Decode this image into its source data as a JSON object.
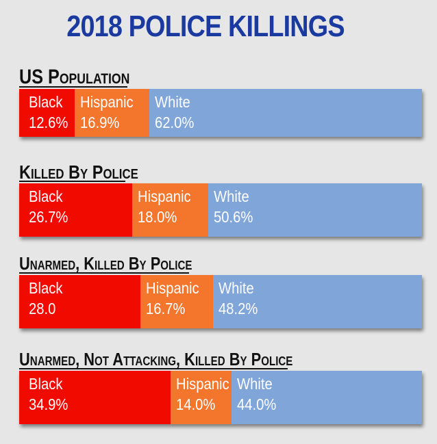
{
  "chart_data": {
    "type": "bar",
    "orientation": "horizontal-stacked",
    "title": "2018 POLICE KILLINGS",
    "colors": {
      "Black": "#f00a00",
      "Hispanic": "#f4752c",
      "White": "#7fa5d9"
    },
    "panels": [
      {
        "title": "US Population",
        "segments": [
          {
            "label": "Black",
            "value": 12.6,
            "value_label": "12.6%"
          },
          {
            "label": "Hispanic",
            "value": 16.9,
            "value_label": "16.9%"
          },
          {
            "label": "White",
            "value": 62.0,
            "value_label": "62.0%"
          }
        ]
      },
      {
        "title": "Killed By Police",
        "segments": [
          {
            "label": "Black",
            "value": 26.7,
            "value_label": "26.7%"
          },
          {
            "label": "Hispanic",
            "value": 18.0,
            "value_label": "18.0%"
          },
          {
            "label": "White",
            "value": 50.6,
            "value_label": "50.6%"
          }
        ]
      },
      {
        "title": "Unarmed, Killed By Police",
        "segments": [
          {
            "label": "Black",
            "value": 28.0,
            "value_label": "28.0"
          },
          {
            "label": "Hispanic",
            "value": 16.7,
            "value_label": "16.7%"
          },
          {
            "label": "White",
            "value": 48.2,
            "value_label": "48.2%"
          }
        ]
      },
      {
        "title": "Unarmed, Not Attacking, Killed By Police",
        "segments": [
          {
            "label": "Black",
            "value": 34.9,
            "value_label": "34.9%"
          },
          {
            "label": "Hispanic",
            "value": 14.0,
            "value_label": "14.0%"
          },
          {
            "label": "White",
            "value": 44.0,
            "value_label": "44.0%"
          }
        ]
      }
    ]
  }
}
